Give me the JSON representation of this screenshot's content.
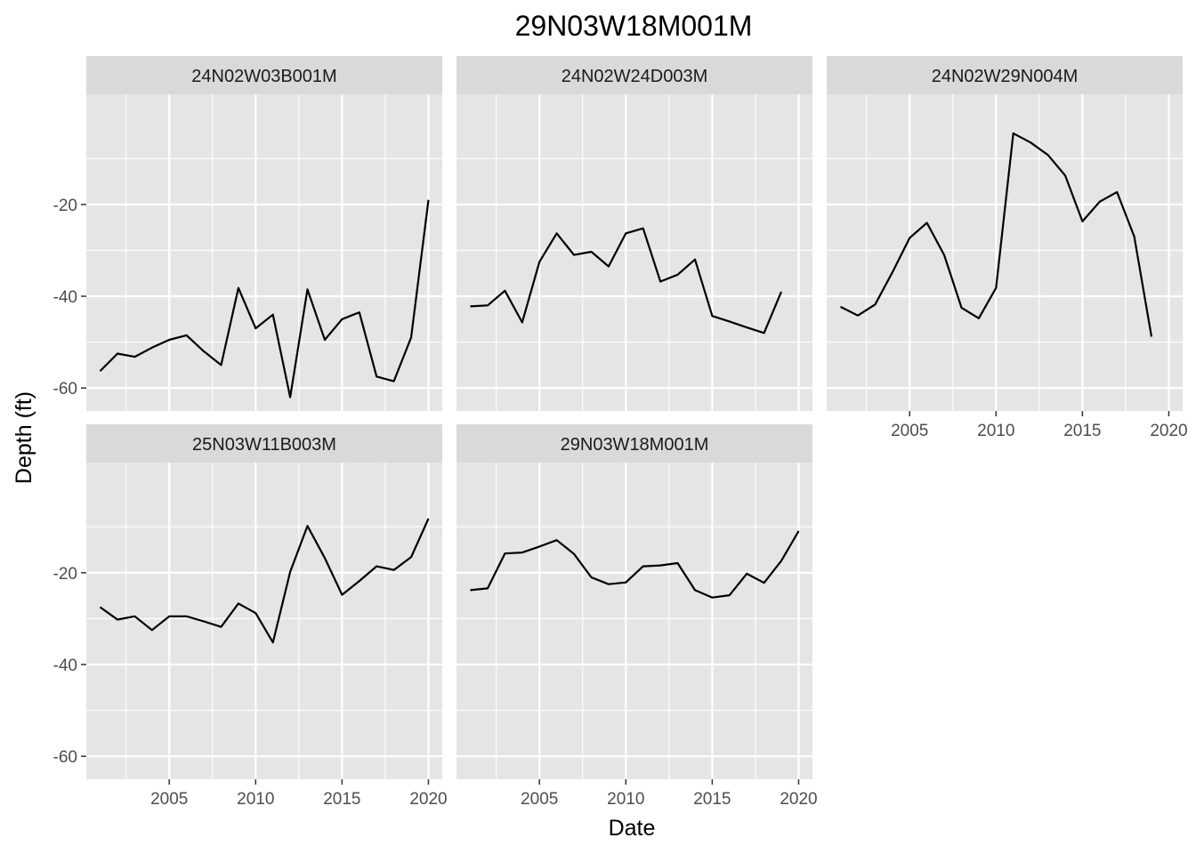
{
  "chart_data": {
    "type": "line",
    "title": "29N03W18M001M",
    "xlabel": "Date",
    "ylabel": "Depth (ft)",
    "xlim": [
      2000.2,
      2020.8
    ],
    "ylim": [
      -65,
      4
    ],
    "x_ticks": [
      2005,
      2010,
      2015,
      2020
    ],
    "x_tick_labels": [
      "2005",
      "2010",
      "2015",
      "2020"
    ],
    "y_ticks": [
      -60,
      -40,
      -20
    ],
    "y_tick_labels": [
      "-60",
      "-40",
      "-20"
    ],
    "grid": true,
    "panels": [
      {
        "name": "24N02W03B001M",
        "x": [
          2001,
          2002,
          2003,
          2004,
          2005,
          2006,
          2007,
          2008,
          2009,
          2010,
          2011,
          2012,
          2013,
          2014,
          2015,
          2016,
          2017,
          2018,
          2019,
          2020
        ],
        "values": [
          -56.3,
          -52.5,
          -53.2,
          -51.2,
          -49.5,
          -48.5,
          -52,
          -55,
          -38.2,
          -47,
          -44,
          -62,
          -38.5,
          -49.5,
          -45,
          -43.5,
          -57.5,
          -58.5,
          -49,
          -19
        ]
      },
      {
        "name": "24N02W24D003M",
        "x": [
          2001,
          2002,
          2003,
          2004,
          2005,
          2006,
          2007,
          2008,
          2009,
          2010,
          2011,
          2012,
          2013,
          2014,
          2015,
          2016,
          2017,
          2018,
          2019
        ],
        "values": [
          -42.2,
          -42,
          -38.8,
          -45.7,
          -32.5,
          -26.3,
          -31,
          -30.3,
          -33.5,
          -26.3,
          -25.2,
          -36.8,
          -35.3,
          -32,
          -44.3,
          -45.5,
          -46.8,
          -48,
          -39
        ]
      },
      {
        "name": "24N02W29N004M",
        "x": [
          2001,
          2002,
          2003,
          2004,
          2005,
          2006,
          2007,
          2008,
          2009,
          2010,
          2011,
          2012,
          2013,
          2014,
          2015,
          2016,
          2017,
          2018,
          2019
        ],
        "values": [
          -42.3,
          -44.2,
          -41.8,
          -34.8,
          -27.3,
          -24,
          -31,
          -42.5,
          -44.8,
          -38.2,
          -4.5,
          -6.5,
          -9.2,
          -13.7,
          -23.7,
          -19.4,
          -17.3,
          -27,
          -48.8
        ]
      },
      {
        "name": "25N03W11B003M",
        "x": [
          2001,
          2002,
          2003,
          2004,
          2005,
          2006,
          2007,
          2008,
          2009,
          2010,
          2011,
          2012,
          2013,
          2014,
          2015,
          2016,
          2017,
          2018,
          2019,
          2020
        ],
        "values": [
          -27.5,
          -30.2,
          -29.5,
          -32.5,
          -29.5,
          -29.5,
          -30.6,
          -31.8,
          -26.7,
          -28.8,
          -35.2,
          -19.8,
          -9.8,
          -16.8,
          -24.8,
          -21.8,
          -18.6,
          -19.4,
          -16.6,
          -8.2
        ]
      },
      {
        "name": "29N03W18M001M",
        "x": [
          2001,
          2002,
          2003,
          2004,
          2005,
          2006,
          2007,
          2008,
          2009,
          2010,
          2011,
          2012,
          2013,
          2014,
          2015,
          2016,
          2017,
          2018,
          2019,
          2020
        ],
        "values": [
          -23.8,
          -23.4,
          -15.8,
          -15.6,
          -14.3,
          -12.9,
          -15.9,
          -21,
          -22.5,
          -22.1,
          -18.6,
          -18.4,
          -17.9,
          -23.8,
          -25.4,
          -24.9,
          -20.2,
          -22.2,
          -17.4,
          -10.9
        ]
      }
    ]
  },
  "colors": {
    "panel_background": "#e5e5e5",
    "strip_background": "#d9d9d9",
    "grid": "#ffffff",
    "line": "#000000",
    "tick": "#333333"
  }
}
